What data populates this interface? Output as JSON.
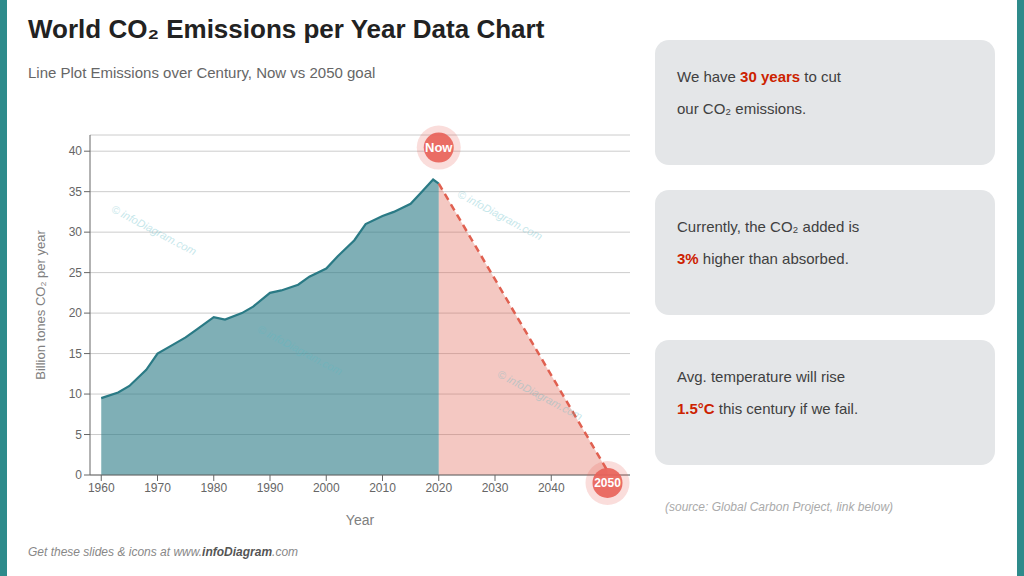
{
  "chart_data": {
    "type": "area",
    "title": "World CO₂ Emissions per Year Data Chart",
    "subtitle": "Line Plot Emissions over Century, Now vs 2050 goal",
    "x_label": "Year",
    "y_label": "Billion tones CO₂ per year",
    "series": [
      {
        "x": [
          1960,
          1963,
          1965,
          1968,
          1970,
          1972,
          1975,
          1977,
          1980,
          1982,
          1985,
          1987,
          1990,
          1992,
          1995,
          1997,
          2000,
          2002,
          2005,
          2007,
          2010,
          2012,
          2015,
          2017,
          2019,
          2020
        ],
        "values": [
          9.5,
          10.2,
          11.0,
          13.0,
          15.0,
          15.8,
          17.0,
          18.0,
          19.5,
          19.2,
          20.0,
          20.8,
          22.5,
          22.8,
          23.5,
          24.5,
          25.5,
          27.0,
          29.0,
          31.0,
          32.0,
          32.5,
          33.5,
          35.0,
          36.5,
          36.0
        ],
        "color": "#2A7A85",
        "line_style": "solid"
      },
      {
        "x": [
          2020,
          2050
        ],
        "values": [
          36.0,
          0.5
        ],
        "color": "#E06050",
        "line_style": "dashed"
      }
    ],
    "xlim": [
      1958,
      2054
    ],
    "ylim": [
      0,
      42
    ],
    "xticks": [
      1960,
      1970,
      1980,
      1990,
      2000,
      2010,
      2020,
      2030,
      2040
    ],
    "yticks": [
      0,
      5,
      10,
      15,
      20,
      25,
      30,
      35,
      40
    ],
    "grid": "y",
    "annotations": [
      {
        "text": "Now",
        "x": 2020,
        "y": 36.0,
        "color": "#E8635A"
      },
      {
        "text": "2050",
        "x": 2050,
        "y": 0.5,
        "color": "#E8635A"
      }
    ],
    "notes": [
      [
        [
          {
            "text": "We have "
          },
          {
            "text": "30 years",
            "color": "#CC2200"
          },
          {
            "text": " to cut"
          }
        ],
        [
          {
            "text": "our CO₂ emissions."
          }
        ]
      ],
      [
        [
          {
            "text": "Currently, the CO₂ added is"
          }
        ],
        [
          {
            "text": "3%",
            "color": "#CC2200"
          },
          {
            "text": " higher than absorbed."
          }
        ]
      ],
      [
        [
          {
            "text": "Avg. temperature will rise"
          }
        ],
        [
          {
            "text": "1.5°C",
            "color": "#CC2200"
          },
          {
            "text": " this century if we fail."
          }
        ]
      ]
    ],
    "source": "(source: Global Carbon Project, link below)",
    "watermark": "© infoDiagram.com",
    "footer": [
      "Get these slides & icons at www.",
      "infoDiagram",
      ".com"
    ]
  }
}
